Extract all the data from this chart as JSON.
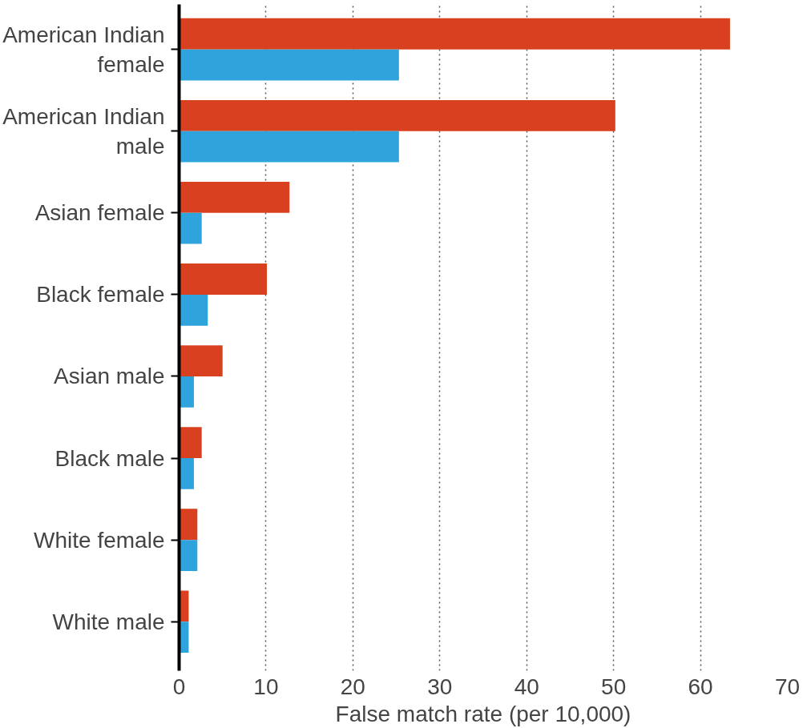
{
  "chart_data": {
    "type": "bar",
    "orientation": "horizontal",
    "xlabel": "False match rate (per 10,000)",
    "categories": [
      "American Indian female",
      "American Indian male",
      "Asian female",
      "Black female",
      "Asian male",
      "Black male",
      "White female",
      "White male"
    ],
    "series": [
      {
        "color": "#d9401f",
        "values": [
          63.4,
          50.2,
          12.7,
          10.1,
          5.0,
          2.6,
          2.1,
          1.1
        ]
      },
      {
        "color": "#2ea3dc",
        "values": [
          25.3,
          25.3,
          2.6,
          3.3,
          1.7,
          1.7,
          2.1,
          1.1
        ]
      }
    ],
    "xlim": [
      0,
      70
    ],
    "xticks": [
      0,
      10,
      20,
      30,
      40,
      50,
      60,
      70
    ],
    "grid": "x"
  }
}
